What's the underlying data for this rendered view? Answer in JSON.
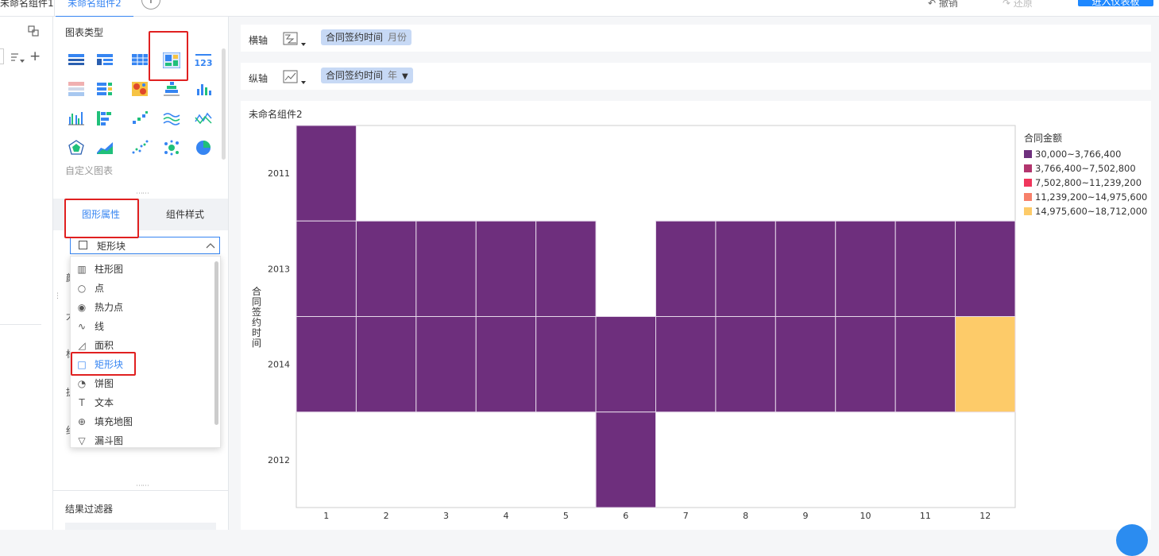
{
  "tabs": [
    {
      "label": "未命名组件1",
      "active": false
    },
    {
      "label": "未命名组件2",
      "active": true
    }
  ],
  "toolbar": {
    "undo": "撤销",
    "redo": "还原",
    "enter": "进入仪表板"
  },
  "palette": {
    "title": "图表类型",
    "custom_label": "自定义图表",
    "icons": [
      "table-icon",
      "cross-table-icon",
      "detail-table-icon",
      "rect-block-chart-icon",
      "number-123-icon",
      "kpi-card-icon",
      "combo-table-icon",
      "heatmap-icon",
      "stacked-bar-icon",
      "column-chart-icon",
      "grouped-column-icon",
      "stacked-horizontal-icon",
      "step-scatter-icon",
      "multi-line-icon",
      "line-area-icon",
      "radar-icon",
      "area-icon",
      "scatter-icon",
      "bubble-icon",
      "pie-icon"
    ]
  },
  "prop_tabs": {
    "graph": "图形属性",
    "style": "组件样式"
  },
  "select": {
    "value": "矩形块"
  },
  "dropdown": {
    "items": [
      {
        "icon": "bar-chart-icon",
        "glyph": "▥",
        "label": "柱形图"
      },
      {
        "icon": "dot-icon",
        "glyph": "○",
        "label": "点"
      },
      {
        "icon": "heat-dot-icon",
        "glyph": "◉",
        "label": "热力点"
      },
      {
        "icon": "line-icon",
        "glyph": "∿",
        "label": "线"
      },
      {
        "icon": "area-icon",
        "glyph": "◿",
        "label": "面积"
      },
      {
        "icon": "rect-block-icon",
        "glyph": "□",
        "label": "矩形块",
        "selected": true
      },
      {
        "icon": "pie-icon",
        "glyph": "◔",
        "label": "饼图"
      },
      {
        "icon": "text-icon",
        "glyph": "T",
        "label": "文本"
      },
      {
        "icon": "globe-icon",
        "glyph": "⊕",
        "label": "填充地图"
      },
      {
        "icon": "funnel-icon",
        "glyph": "▽",
        "label": "漏斗图"
      }
    ]
  },
  "filter_title": "结果过滤器",
  "axes": {
    "x_label": "横轴",
    "x_field": "合同签约时间",
    "x_sub": "月份",
    "y_label": "纵轴",
    "y_field": "合同签约时间",
    "y_sub": "年"
  },
  "chart_title": "未命名组件2",
  "colors": {
    "accent": "#3685f2",
    "purple": "#6e2f7d",
    "yellow": "#fdcb69",
    "red_highlight": "#e02020"
  },
  "chart_data": {
    "type": "heatmap",
    "title": "未命名组件2",
    "x": [
      "1",
      "2",
      "3",
      "4",
      "5",
      "6",
      "7",
      "8",
      "9",
      "10",
      "11",
      "12"
    ],
    "y": [
      "2011",
      "2013",
      "2014",
      "2012"
    ],
    "ylabel": "合同签约时间",
    "legend_title": "合同金额",
    "legend_placement": "right",
    "legend": [
      {
        "label": "30,000~3,766,400",
        "color": "#6e2f7d"
      },
      {
        "label": "3,766,400~7,502,800",
        "color": "#b2356e"
      },
      {
        "label": "7,502,800~11,239,200",
        "color": "#f0365c"
      },
      {
        "label": "11,239,200~14,975,600",
        "color": "#f7806a"
      },
      {
        "label": "14,975,600~18,712,000",
        "color": "#fdcb69"
      }
    ],
    "cells": [
      [
        0,
        null,
        null,
        null,
        null,
        null,
        null,
        null,
        null,
        null,
        null,
        null
      ],
      [
        0,
        0,
        0,
        0,
        0,
        null,
        0,
        0,
        0,
        0,
        0,
        0
      ],
      [
        0,
        0,
        0,
        0,
        0,
        0,
        0,
        0,
        0,
        0,
        0,
        4
      ],
      [
        null,
        null,
        null,
        null,
        null,
        0,
        null,
        null,
        null,
        null,
        null,
        null
      ]
    ]
  }
}
